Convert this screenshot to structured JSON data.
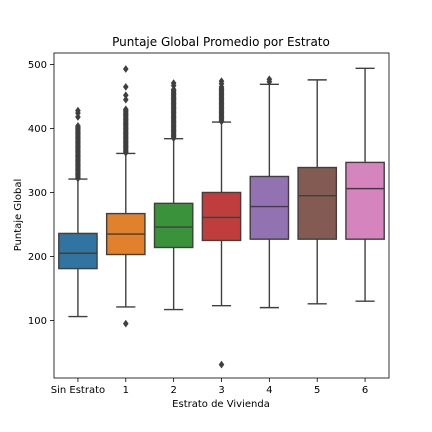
{
  "chart_data": {
    "type": "box",
    "title": "Puntaje Global Promedio por Estrato",
    "xlabel": "Estrato de Vivienda",
    "ylabel": "Puntaje Global",
    "ylim": [
      10,
      518
    ],
    "yticks": [
      100,
      200,
      300,
      400,
      500
    ],
    "grid": false,
    "categories": [
      "Sin Estrato",
      "1",
      "2",
      "3",
      "4",
      "5",
      "6"
    ],
    "colors": [
      "#3274a1",
      "#e1812c",
      "#3a923a",
      "#c03d3e",
      "#9372b2",
      "#845b53",
      "#d684bd"
    ],
    "boxes": [
      {
        "category": "Sin Estrato",
        "whisker_low": 106,
        "q1": 181,
        "median": 205,
        "q3": 236,
        "whisker_high": 321,
        "outliers_high_from": 322,
        "outliers_high_to": 404,
        "outliers_extra": [
          418,
          424,
          428
        ],
        "outliers_low": []
      },
      {
        "category": "1",
        "whisker_low": 121,
        "q1": 203,
        "median": 235,
        "q3": 267,
        "whisker_high": 361,
        "outliers_high_from": 362,
        "outliers_high_to": 430,
        "outliers_extra": [
          445,
          452,
          465,
          493
        ],
        "outliers_low": [
          95
        ]
      },
      {
        "category": "2",
        "whisker_low": 117,
        "q1": 214,
        "median": 246,
        "q3": 283,
        "whisker_high": 384,
        "outliers_high_from": 385,
        "outliers_high_to": 462,
        "outliers_extra": [
          467,
          471
        ],
        "outliers_low": []
      },
      {
        "category": "3",
        "whisker_low": 123,
        "q1": 225,
        "median": 261,
        "q3": 300,
        "whisker_high": 410,
        "outliers_high_from": 411,
        "outliers_high_to": 465,
        "outliers_extra": [
          470,
          474
        ],
        "outliers_low": [
          31
        ]
      },
      {
        "category": "4",
        "whisker_low": 120,
        "q1": 227,
        "median": 278,
        "q3": 325,
        "whisker_high": 469,
        "outliers_high_from": null,
        "outliers_high_to": null,
        "outliers_extra": [
          473,
          477
        ],
        "outliers_low": []
      },
      {
        "category": "5",
        "whisker_low": 126,
        "q1": 227,
        "median": 295,
        "q3": 339,
        "whisker_high": 476,
        "outliers_high_from": null,
        "outliers_high_to": null,
        "outliers_extra": [],
        "outliers_low": []
      },
      {
        "category": "6",
        "whisker_low": 130,
        "q1": 227,
        "median": 306,
        "q3": 347,
        "whisker_high": 494,
        "outliers_high_from": null,
        "outliers_high_to": null,
        "outliers_extra": [],
        "outliers_low": []
      }
    ]
  }
}
